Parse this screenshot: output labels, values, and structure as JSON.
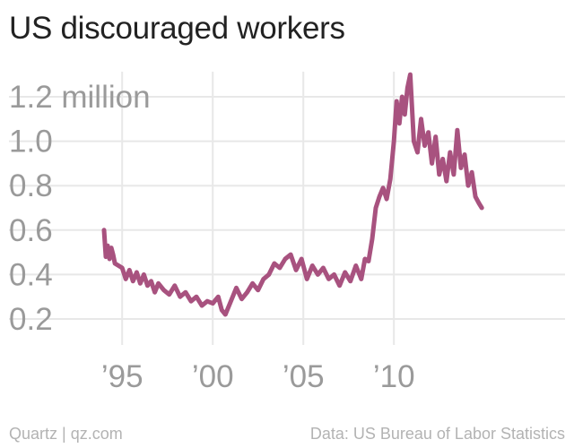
{
  "header": {
    "title": "US discouraged workers"
  },
  "footer": {
    "source_left": "Quartz | qz.com",
    "source_right": "Data: US Bureau of Labor Statistics"
  },
  "colors": {
    "series": "#a8527f",
    "grid": "#e8e8e8",
    "tick_text": "#9a9a9a"
  },
  "chart_data": {
    "type": "line",
    "title": "US discouraged workers",
    "xlabel": "",
    "ylabel": "",
    "grid": true,
    "x_range": [
      1993,
      2015
    ],
    "ylim": [
      0.1,
      1.32
    ],
    "y_ticks": [
      {
        "value": 1.2,
        "label": "1.2 million"
      },
      {
        "value": 1.0,
        "label": "1.0"
      },
      {
        "value": 0.8,
        "label": "0.8"
      },
      {
        "value": 0.6,
        "label": "0.6"
      },
      {
        "value": 0.4,
        "label": "0.4"
      },
      {
        "value": 0.2,
        "label": "0.2"
      }
    ],
    "x_ticks": [
      {
        "value": 1995,
        "label": "’95"
      },
      {
        "value": 2000,
        "label": "’00"
      },
      {
        "value": 2005,
        "label": "’05"
      },
      {
        "value": 2010,
        "label": "’10"
      }
    ],
    "series": [
      {
        "color": "#a8527f",
        "x": [
          1994.0,
          1994.1,
          1994.2,
          1994.3,
          1994.4,
          1994.5,
          1994.6,
          1994.8,
          1995.0,
          1995.2,
          1995.4,
          1995.6,
          1995.8,
          1996.0,
          1996.2,
          1996.4,
          1996.6,
          1996.8,
          1997.0,
          1997.3,
          1997.6,
          1997.9,
          1998.2,
          1998.5,
          1998.8,
          1999.1,
          1999.4,
          1999.7,
          2000.0,
          2000.3,
          2000.5,
          2000.7,
          2001.0,
          2001.3,
          2001.6,
          2001.9,
          2002.2,
          2002.5,
          2002.8,
          2003.1,
          2003.4,
          2003.7,
          2004.0,
          2004.3,
          2004.6,
          2004.9,
          2005.2,
          2005.5,
          2005.8,
          2006.1,
          2006.4,
          2006.7,
          2007.0,
          2007.3,
          2007.6,
          2007.9,
          2008.2,
          2008.4,
          2008.6,
          2008.8,
          2009.0,
          2009.2,
          2009.4,
          2009.6,
          2009.8,
          2010.0,
          2010.15,
          2010.3,
          2010.45,
          2010.6,
          2010.75,
          2010.9,
          2011.1,
          2011.3,
          2011.5,
          2011.7,
          2011.9,
          2012.1,
          2012.3,
          2012.5,
          2012.7,
          2012.9,
          2013.1,
          2013.3,
          2013.5,
          2013.7,
          2013.9,
          2014.1,
          2014.3,
          2014.5,
          2014.7,
          2014.85
        ],
        "values": [
          0.6,
          0.48,
          0.53,
          0.47,
          0.52,
          0.49,
          0.45,
          0.44,
          0.43,
          0.38,
          0.42,
          0.37,
          0.41,
          0.36,
          0.4,
          0.35,
          0.37,
          0.32,
          0.36,
          0.33,
          0.31,
          0.35,
          0.3,
          0.32,
          0.28,
          0.3,
          0.26,
          0.28,
          0.27,
          0.3,
          0.24,
          0.22,
          0.28,
          0.34,
          0.29,
          0.32,
          0.36,
          0.33,
          0.38,
          0.4,
          0.45,
          0.43,
          0.47,
          0.49,
          0.42,
          0.47,
          0.38,
          0.44,
          0.4,
          0.43,
          0.38,
          0.4,
          0.35,
          0.41,
          0.37,
          0.44,
          0.38,
          0.47,
          0.46,
          0.56,
          0.7,
          0.75,
          0.79,
          0.74,
          0.83,
          1.0,
          1.18,
          1.08,
          1.2,
          1.12,
          1.24,
          1.3,
          1.0,
          0.95,
          1.1,
          0.98,
          1.04,
          0.9,
          1.02,
          0.85,
          0.92,
          0.82,
          0.95,
          0.85,
          1.05,
          0.88,
          0.94,
          0.8,
          0.86,
          0.75,
          0.72,
          0.7
        ]
      }
    ]
  }
}
